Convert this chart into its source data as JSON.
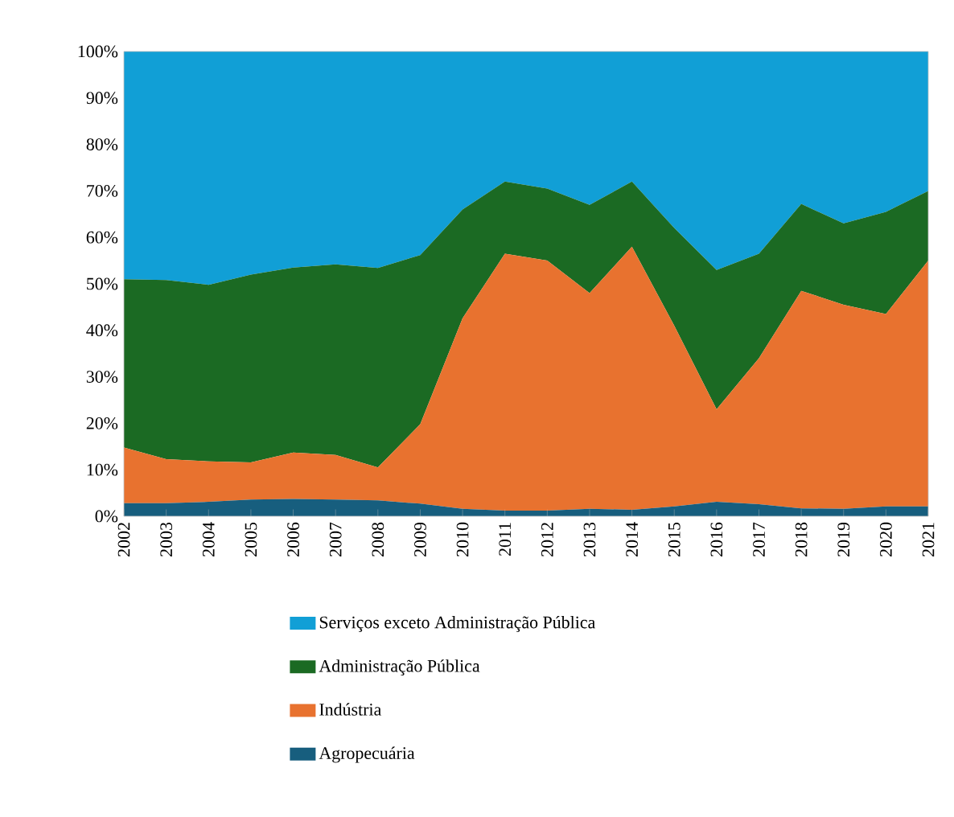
{
  "chart_data": {
    "type": "area",
    "stacked": true,
    "legend": "bottom",
    "grid": false,
    "categories": [
      "2002",
      "2003",
      "2004",
      "2005",
      "2006",
      "2007",
      "2008",
      "2009",
      "2010",
      "2011",
      "2012",
      "2013",
      "2014",
      "2015",
      "2016",
      "2017",
      "2018",
      "2019",
      "2020",
      "2021"
    ],
    "ylim": [
      0,
      100
    ],
    "yticks": [
      {
        "value": 0,
        "label": "0%"
      },
      {
        "value": 10,
        "label": "10%"
      },
      {
        "value": 20,
        "label": "20%"
      },
      {
        "value": 30,
        "label": "30%"
      },
      {
        "value": 40,
        "label": "40%"
      },
      {
        "value": 50,
        "label": "50%"
      },
      {
        "value": 60,
        "label": "60%"
      },
      {
        "value": 70,
        "label": "70%"
      },
      {
        "value": 80,
        "label": "80%"
      },
      {
        "value": 90,
        "label": "90%"
      },
      {
        "value": 100,
        "label": "100%"
      }
    ],
    "series": [
      {
        "name": "Agropecuária",
        "color": "#175e7e",
        "values": [
          2.8,
          2.8,
          3.1,
          3.6,
          3.7,
          3.6,
          3.4,
          2.7,
          1.6,
          1.2,
          1.2,
          1.6,
          1.4,
          2.1,
          3.1,
          2.6,
          1.7,
          1.6,
          2.1,
          2.1
        ]
      },
      {
        "name": "Indústria",
        "color": "#e8722f",
        "values": [
          12.0,
          9.5,
          8.7,
          8.0,
          10.0,
          9.6,
          7.1,
          17.1,
          41.0,
          55.3,
          53.8,
          46.4,
          56.6,
          38.9,
          19.9,
          31.4,
          46.8,
          43.9,
          41.4,
          52.9
        ]
      },
      {
        "name": "Administração Pública",
        "color": "#1b6a23",
        "values": [
          36.2,
          38.5,
          38.0,
          40.4,
          39.8,
          41.0,
          42.9,
          36.4,
          23.4,
          15.5,
          15.5,
          19.0,
          14.0,
          21.0,
          30.0,
          22.5,
          18.7,
          17.5,
          22.0,
          15.0
        ]
      },
      {
        "name": "Serviços exceto Administração Pública",
        "color": "#119fd6",
        "values": [
          49.0,
          49.2,
          50.2,
          48.0,
          46.5,
          45.8,
          46.6,
          43.8,
          34.0,
          28.0,
          29.5,
          33.0,
          28.0,
          38.0,
          47.0,
          43.5,
          32.8,
          37.0,
          34.5,
          30.0
        ]
      }
    ]
  }
}
